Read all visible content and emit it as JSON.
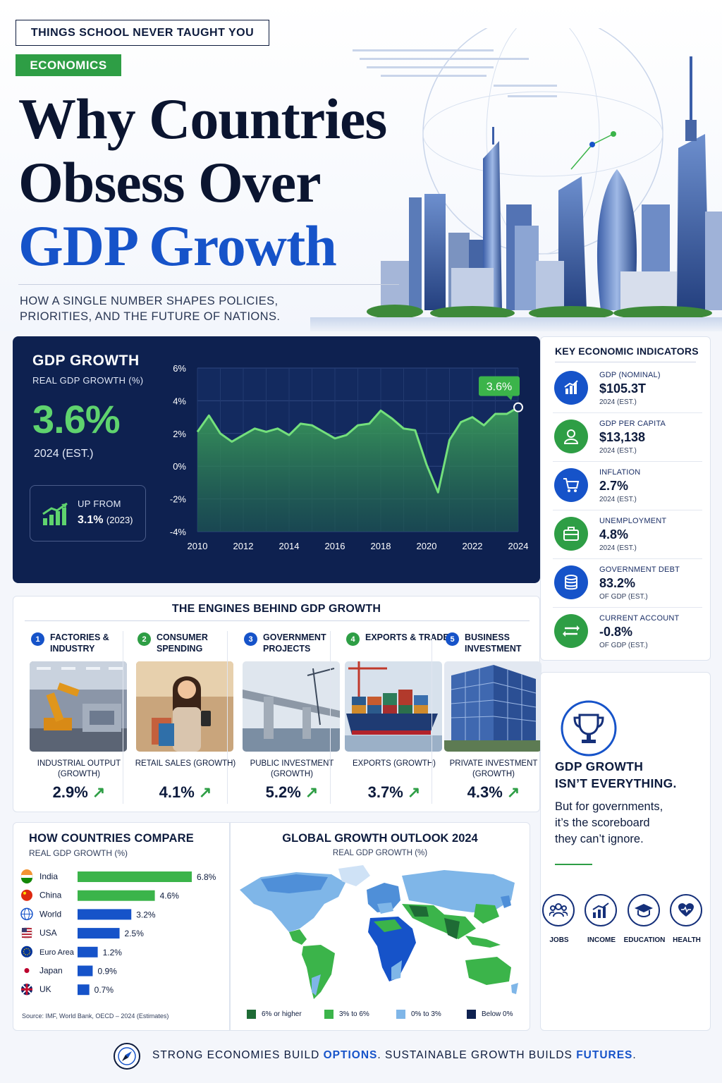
{
  "header": {
    "eyebrow": "THINGS SCHOOL NEVER TAUGHT YOU",
    "tag": "ECONOMICS",
    "title_line1": "Why Countries",
    "title_line2": "Obsess Over",
    "title_line3": "GDP Growth",
    "subtitle": "HOW A SINGLE NUMBER SHAPES POLICIES, PRIORITIES, AND THE FUTURE OF NATIONS."
  },
  "gdp_panel": {
    "title": "GDP GROWTH",
    "subtitle": "REAL GDP GROWTH (%)",
    "big_value": "3.6%",
    "year": "2024 (EST.)",
    "up_label": "UP FROM",
    "up_value": "3.1%",
    "up_year": "(2023)",
    "callout": "3.6%"
  },
  "indicators": {
    "title": "KEY ECONOMIC INDICATORS",
    "items": [
      {
        "label": "GDP (NOMINAL)",
        "value": "$105.3T",
        "note": "2024 (EST.)",
        "icon": "bar-chart-icon",
        "color": "#1653c9"
      },
      {
        "label": "GDP PER CAPITA",
        "value": "$13,138",
        "note": "2024 (EST.)",
        "icon": "person-icon",
        "color": "#2e9e45"
      },
      {
        "label": "INFLATION",
        "value": "2.7%",
        "note": "2024 (EST.)",
        "icon": "cart-icon",
        "color": "#1653c9"
      },
      {
        "label": "UNEMPLOYMENT",
        "value": "4.8%",
        "note": "2024 (EST.)",
        "icon": "briefcase-icon",
        "color": "#2e9e45"
      },
      {
        "label": "GOVERNMENT DEBT",
        "value": "83.2%",
        "note": "OF GDP (EST.)",
        "icon": "coins-icon",
        "color": "#1653c9"
      },
      {
        "label": "CURRENT ACCOUNT",
        "value": "-0.8%",
        "note": "OF GDP (EST.)",
        "icon": "exchange-icon",
        "color": "#2e9e45"
      }
    ]
  },
  "engines": {
    "title": "THE ENGINES BEHIND GDP GROWTH",
    "items": [
      {
        "num": "1",
        "name": "FACTORIES & INDUSTRY",
        "metric": "INDUSTRIAL OUTPUT (GROWTH)",
        "value": "2.9%"
      },
      {
        "num": "2",
        "name": "CONSUMER SPENDING",
        "metric": "RETAIL SALES (GROWTH)",
        "value": "4.1%"
      },
      {
        "num": "3",
        "name": "GOVERNMENT PROJECTS",
        "metric": "PUBLIC INVESTMENT (GROWTH)",
        "value": "5.2%"
      },
      {
        "num": "4",
        "name": "EXPORTS & TRADE",
        "metric": "EXPORTS (GROWTH)",
        "value": "3.7%"
      },
      {
        "num": "5",
        "name": "BUSINESS INVESTMENT",
        "metric": "PRIVATE INVESTMENT (GROWTH)",
        "value": "4.3%"
      }
    ]
  },
  "compare": {
    "title": "HOW COUNTRIES COMPARE",
    "subtitle": "REAL GDP GROWTH (%)",
    "source": "Source: IMF, World Bank, OECD – 2024 (Estimates)"
  },
  "map": {
    "title": "GLOBAL GROWTH OUTLOOK 2024",
    "subtitle": "REAL GDP GROWTH (%)",
    "legend": [
      {
        "label": "6% or higher",
        "color": "#1e6b35"
      },
      {
        "label": "3% to 6%",
        "color": "#3bb44a"
      },
      {
        "label": "0% to 3%",
        "color": "#7fb6e8"
      },
      {
        "label": "Below 0%",
        "color": "#0e2150"
      }
    ]
  },
  "side": {
    "heading_line1": "GDP GROWTH",
    "heading_line2": "ISN’T EVERYTHING.",
    "text_line1": "But for governments,",
    "text_line2": "it’s the scoreboard",
    "text_line3": "they can’t ignore.",
    "icons": [
      {
        "label": "JOBS",
        "icon": "people-icon"
      },
      {
        "label": "INCOME",
        "icon": "chart-up-icon"
      },
      {
        "label": "EDUCATION",
        "icon": "graduation-cap-icon"
      },
      {
        "label": "HEALTH",
        "icon": "heart-icon"
      }
    ]
  },
  "footer": {
    "part1": "STRONG ECONOMIES BUILD ",
    "bold1": "OPTIONS",
    "part2": ". SUSTAINABLE GROWTH BUILDS ",
    "bold2": "FUTURES",
    "part3": "."
  },
  "chart_data": [
    {
      "type": "area",
      "x": [
        2010,
        2011,
        2012,
        2013,
        2014,
        2015,
        2016,
        2017,
        2018,
        2019,
        2020,
        2021,
        2022,
        2023,
        2024
      ],
      "y_line": [
        2.0,
        3.1,
        1.5,
        2.3,
        2.0,
        2.6,
        1.7,
        2.5,
        3.4,
        2.3,
        -1.6,
        1.7,
        2.9,
        3.1,
        3.6
      ],
      "x_dense": [
        2010,
        2010.5,
        2011,
        2011.5,
        2012,
        2012.5,
        2013,
        2013.5,
        2014,
        2014.5,
        2015,
        2015.5,
        2016,
        2016.5,
        2017,
        2017.5,
        2018,
        2018.5,
        2019,
        2019.5,
        2020,
        2020.5,
        2021,
        2021.5,
        2022,
        2022.5,
        2023,
        2023.5,
        2024
      ],
      "y_dense": [
        2.1,
        3.1,
        2.0,
        1.5,
        1.9,
        2.3,
        2.1,
        2.3,
        1.9,
        2.6,
        2.5,
        2.1,
        1.7,
        1.9,
        2.5,
        2.6,
        3.4,
        2.9,
        2.3,
        2.2,
        0.1,
        -1.6,
        1.6,
        2.7,
        3.0,
        2.5,
        3.2,
        3.2,
        3.4
      ],
      "xticks": [
        2010,
        2012,
        2014,
        2016,
        2018,
        2020,
        2022,
        2024
      ],
      "yticks": [
        "6%",
        "4%",
        "2%",
        "0%",
        "-2%",
        "-4%"
      ],
      "ylim": [
        -4,
        6
      ],
      "grid": true
    },
    {
      "type": "bar",
      "orientation": "horizontal",
      "categories": [
        "India",
        "China",
        "World",
        "USA",
        "Euro Area",
        "Japan",
        "UK"
      ],
      "values": [
        6.8,
        4.6,
        3.2,
        2.5,
        1.2,
        0.9,
        0.7
      ],
      "labels": [
        "6.8%",
        "4.6%",
        "3.2%",
        "2.5%",
        "1.2%",
        "0.9%",
        "0.7%"
      ],
      "colors": [
        "#3bb44a",
        "#3bb44a",
        "#1653c9",
        "#1653c9",
        "#1653c9",
        "#1653c9",
        "#1653c9"
      ],
      "xlim": [
        0,
        7
      ]
    }
  ]
}
